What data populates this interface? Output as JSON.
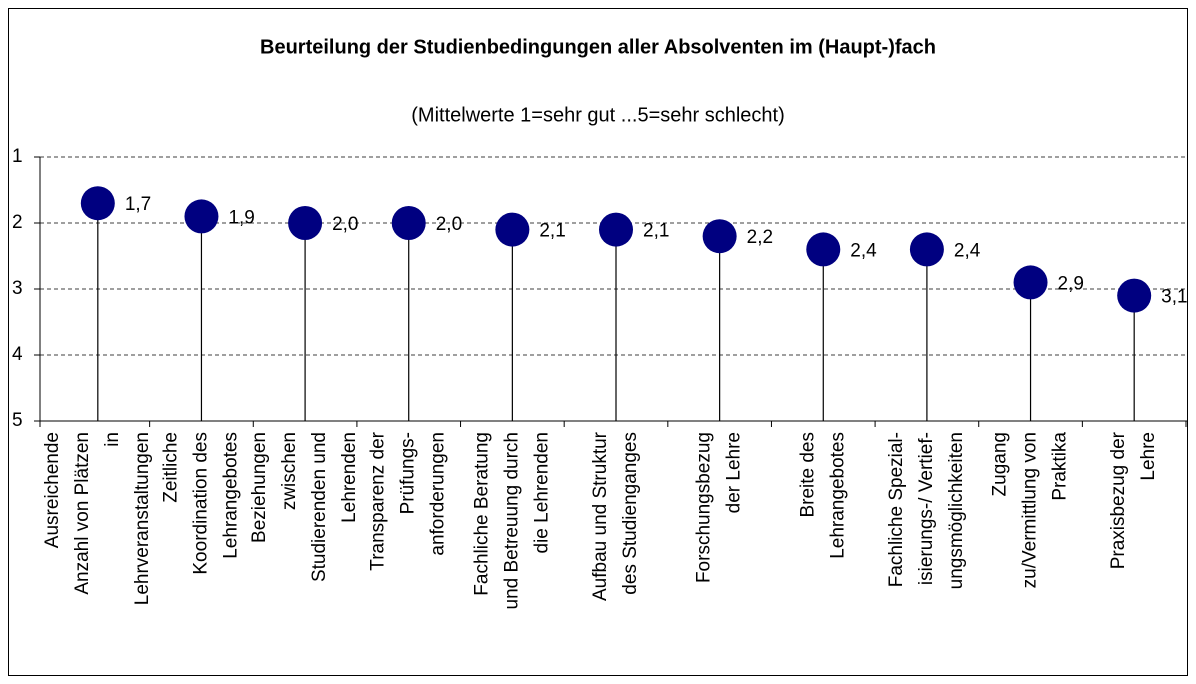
{
  "chart_data": {
    "type": "lollipop",
    "title": "Beurteilung der Studienbedingungen aller Absolventen im (Haupt-)fach",
    "subtitle": "(Mittelwerte 1=sehr gut ...5=sehr schlecht)",
    "categories": [
      [
        "Ausreichende",
        "Anzahl von Plätzen",
        "in",
        "Lehrveranstaltungen"
      ],
      [
        "Zeitliche",
        "Koordination des",
        "Lehrangebotes"
      ],
      [
        "Beziehungen",
        "zwischen",
        "Studierenden und",
        "Lehrenden"
      ],
      [
        "Transparenz der",
        "Prüfungs-",
        "anforderungen"
      ],
      [
        "Fachliche Beratung",
        "und Betreuung durch",
        "die Lehrenden"
      ],
      [
        "Aufbau und Struktur",
        "des Studienganges"
      ],
      [
        "Forschungsbezug",
        "der Lehre"
      ],
      [
        "Breite des",
        "Lehrangebotes"
      ],
      [
        "Fachliche Spezial-",
        "isierungs-/ Vertief-",
        "ungsmöglichkeiten"
      ],
      [
        "Zugang",
        "zu/Vermittlung von",
        "Praktika"
      ],
      [
        "Praxisbezug der",
        "Lehre"
      ]
    ],
    "values": [
      1.7,
      1.9,
      2.0,
      2.0,
      2.1,
      2.1,
      2.2,
      2.4,
      2.4,
      2.9,
      3.1
    ],
    "value_labels": [
      "1,7",
      "1,9",
      "2,0",
      "2,0",
      "2,1",
      "2,1",
      "2,2",
      "2,4",
      "2,4",
      "2,9",
      "3,1"
    ],
    "color": "#000080",
    "ylim": [
      1,
      5
    ],
    "yticks": [
      1,
      2,
      3,
      4,
      5
    ],
    "y_inverted": true,
    "grid": true
  }
}
